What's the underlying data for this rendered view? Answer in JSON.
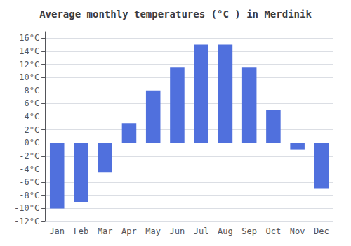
{
  "chart_data": {
    "type": "bar",
    "title": "Average monthly temperatures (°C ) in Merdinik",
    "categories": [
      "Jan",
      "Feb",
      "Mar",
      "Apr",
      "May",
      "Jun",
      "Jul",
      "Aug",
      "Sep",
      "Oct",
      "Nov",
      "Dec"
    ],
    "values": [
      -10,
      -9,
      -4.5,
      3,
      8,
      11.5,
      15,
      15,
      11.5,
      5,
      -1,
      -7
    ],
    "ylim": [
      -12,
      17
    ],
    "yticks": [
      {
        "value": -12,
        "label": "-12°C"
      },
      {
        "value": -10,
        "label": "-10°C"
      },
      {
        "value": -8,
        "label": "-8°C"
      },
      {
        "value": -6,
        "label": "-6°C"
      },
      {
        "value": -4,
        "label": "-4°C"
      },
      {
        "value": -2,
        "label": "-2°C"
      },
      {
        "value": 0,
        "label": "0°C"
      },
      {
        "value": 2,
        "label": "2°C"
      },
      {
        "value": 4,
        "label": "4°C"
      },
      {
        "value": 6,
        "label": "6°C"
      },
      {
        "value": 8,
        "label": "8°C"
      },
      {
        "value": 10,
        "label": "10°C"
      },
      {
        "value": 12,
        "label": "12°C"
      },
      {
        "value": 14,
        "label": "14°C"
      },
      {
        "value": 16,
        "label": "16°C"
      }
    ],
    "grid": true
  }
}
